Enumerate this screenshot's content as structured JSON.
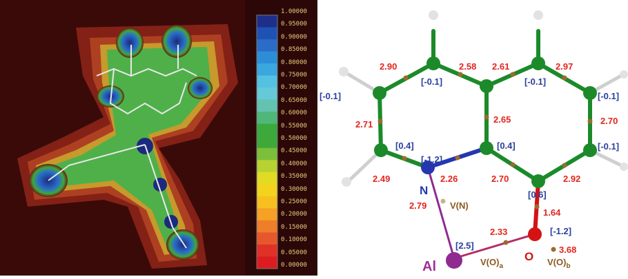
{
  "colorbar": {
    "labels": [
      "1.00000",
      "0.95000",
      "0.90000",
      "0.85000",
      "0.80000",
      "0.75000",
      "0.70000",
      "0.65000",
      "0.60000",
      "0.55000",
      "0.50000",
      "0.45000",
      "0.40000",
      "0.35000",
      "0.30000",
      "0.25000",
      "0.20000",
      "0.15000",
      "0.10000",
      "0.05000",
      "0.00000"
    ],
    "colors": [
      "#1e2f8a",
      "#1f52b4",
      "#2a6cc8",
      "#2d8ed8",
      "#3aa7df",
      "#55c1e2",
      "#66c9d8",
      "#64c2b0",
      "#4fb77a",
      "#3ba93c",
      "#3fa83a",
      "#7cbf3a",
      "#b7d233",
      "#e2db25",
      "#f3d31b",
      "#f7c020",
      "#f4a126",
      "#ee7e2a",
      "#e7572c",
      "#e03128",
      "#db1d22"
    ],
    "text_color": "#e9c97d"
  },
  "molecule": {
    "values_red": [
      "2.90",
      "2.58",
      "2.61",
      "2.97",
      "2.71",
      "2.65",
      "2.70",
      "2.49",
      "2.26",
      "2.70",
      "2.92",
      "2.79",
      "1.64",
      "2.33",
      "3.68"
    ],
    "values_blue": [
      "[-0.1]",
      "[-0.1]",
      "[-0.1]",
      "[-0.1]",
      "[0.4]",
      "[-1.2]",
      "[0.4]",
      "[-0.1]",
      "[0.6]",
      "[-1.2]",
      "[2.5]"
    ],
    "atom_N": "N",
    "atom_O": "O",
    "atom_Al": "Al",
    "vn_label": "V(N)",
    "voa_label": "V(O)",
    "voa_sub": "a",
    "vob_label": "V(O)",
    "vob_sub": "b",
    "colors": {
      "red_text": "#e2261e",
      "blue_text": "#2a3f9e",
      "brown_text": "#8a5a1f",
      "al_text": "#a02f9a",
      "carbon": "#1c8a2a",
      "nitrogen": "#2437b0",
      "oxygen": "#d41313",
      "aluminum": "#8f2b90",
      "hydrogen": "#e0e0e0"
    }
  }
}
